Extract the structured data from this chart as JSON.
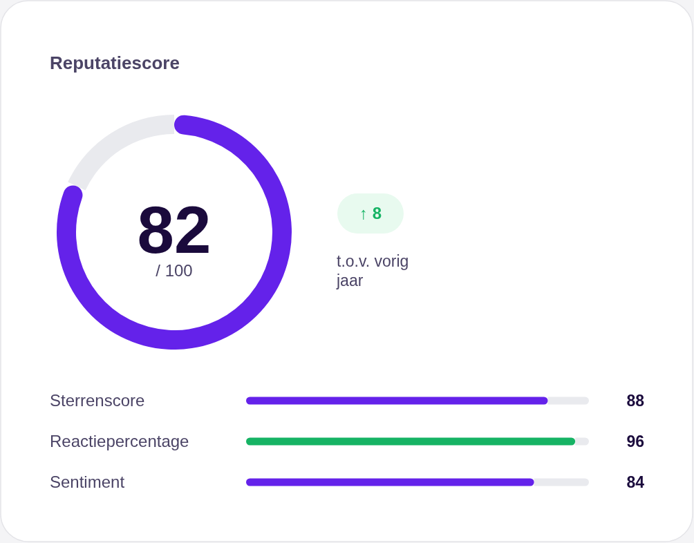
{
  "chart_data": [
    {
      "type": "donut",
      "title": "Reputatiescore",
      "categories": [
        null,
        null
      ],
      "values": [
        82,
        18
      ],
      "colors": [
        "#6422ea",
        "#e9eaee"
      ],
      "value_labels": [
        "82",
        null
      ],
      "annotations": [
        "/ 100",
        "↑ 8",
        "t.o.v. vorig jaar"
      ]
    },
    {
      "type": "bar",
      "orientation": "horizontal",
      "categories": [
        "Sterrenscore",
        "Reactiepercentage",
        "Sentiment"
      ],
      "values": [
        88,
        96,
        84
      ],
      "colors": [
        "#6422ea",
        "#16b364",
        "#6422ea"
      ],
      "xlim": [
        0,
        100
      ],
      "tick_labels": false,
      "data_labels": true
    }
  ]
}
